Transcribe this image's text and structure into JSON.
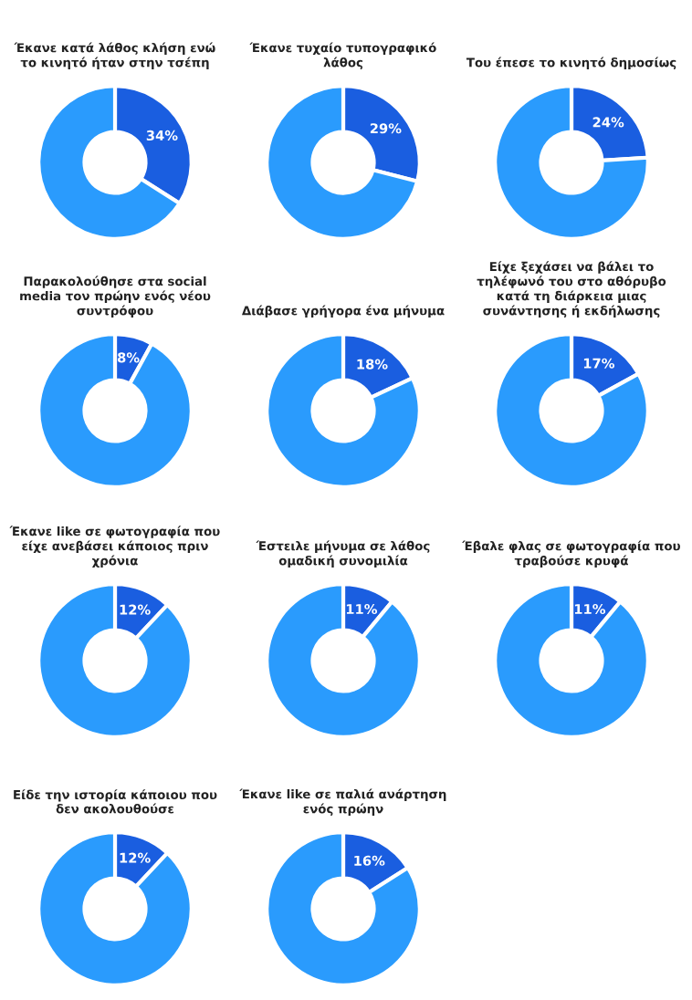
{
  "chart_data": [
    {
      "type": "donut",
      "title": "Έκανε κατά λάθος κλήση ενώ το κινητό ήταν στην τσέπη",
      "categories": [
        null,
        null
      ],
      "values": [
        34,
        66
      ],
      "colors": [
        "#1a5ee0",
        "#2a9bfd"
      ],
      "value_labels": [
        "34%",
        null
      ]
    },
    {
      "type": "donut",
      "title": "Έκανε τυχαίο τυπογραφικό λάθος",
      "categories": [
        null,
        null
      ],
      "values": [
        29,
        71
      ],
      "colors": [
        "#1a5ee0",
        "#2a9bfd"
      ],
      "value_labels": [
        "29%",
        null
      ]
    },
    {
      "type": "donut",
      "title": "Του έπεσε το κινητό δημοσίως",
      "categories": [
        null,
        null
      ],
      "values": [
        24,
        76
      ],
      "colors": [
        "#1a5ee0",
        "#2a9bfd"
      ],
      "value_labels": [
        "24%",
        null
      ]
    },
    {
      "type": "donut",
      "title": "Παρακολούθησε στα social media τον πρώην ενός νέου συντρόφου",
      "categories": [
        null,
        null
      ],
      "values": [
        8,
        92
      ],
      "colors": [
        "#1a5ee0",
        "#2a9bfd"
      ],
      "value_labels": [
        "8%",
        null
      ]
    },
    {
      "type": "donut",
      "title": "Διάβασε γρήγορα ένα μήνυμα",
      "categories": [
        null,
        null
      ],
      "values": [
        18,
        82
      ],
      "colors": [
        "#1a5ee0",
        "#2a9bfd"
      ],
      "value_labels": [
        "18%",
        null
      ]
    },
    {
      "type": "donut",
      "title": "Είχε ξεχάσει να βάλει το τηλέφωνό του στο αθόρυβο κατά τη διάρκεια μιας συνάντησης ή εκδήλωσης",
      "categories": [
        null,
        null
      ],
      "values": [
        17,
        83
      ],
      "colors": [
        "#1a5ee0",
        "#2a9bfd"
      ],
      "value_labels": [
        "17%",
        null
      ]
    },
    {
      "type": "donut",
      "title": "Έκανε like σε φωτογραφία που είχε ανεβάσει κάποιος πριν χρόνια",
      "categories": [
        null,
        null
      ],
      "values": [
        12,
        88
      ],
      "colors": [
        "#1a5ee0",
        "#2a9bfd"
      ],
      "value_labels": [
        "12%",
        null
      ]
    },
    {
      "type": "donut",
      "title": "Έστειλε μήνυμα σε λάθος ομαδική συνομιλία",
      "categories": [
        null,
        null
      ],
      "values": [
        11,
        89
      ],
      "colors": [
        "#1a5ee0",
        "#2a9bfd"
      ],
      "value_labels": [
        "11%",
        null
      ]
    },
    {
      "type": "donut",
      "title": "Έβαλε φλας σε φωτογραφία που τραβούσε κρυφά",
      "categories": [
        null,
        null
      ],
      "values": [
        11,
        89
      ],
      "colors": [
        "#1a5ee0",
        "#2a9bfd"
      ],
      "value_labels": [
        "11%",
        null
      ]
    },
    {
      "type": "donut",
      "title": "Είδε την ιστορία κάποιου που δεν ακολουθούσε",
      "categories": [
        null,
        null
      ],
      "values": [
        12,
        88
      ],
      "colors": [
        "#1a5ee0",
        "#2a9bfd"
      ],
      "value_labels": [
        "12%",
        null
      ]
    },
    {
      "type": "donut",
      "title": "Έκανε like σε παλιά ανάρτηση ενός πρώην",
      "categories": [
        null,
        null
      ],
      "values": [
        16,
        84
      ],
      "colors": [
        "#1a5ee0",
        "#2a9bfd"
      ],
      "value_labels": [
        "16%",
        null
      ]
    }
  ]
}
